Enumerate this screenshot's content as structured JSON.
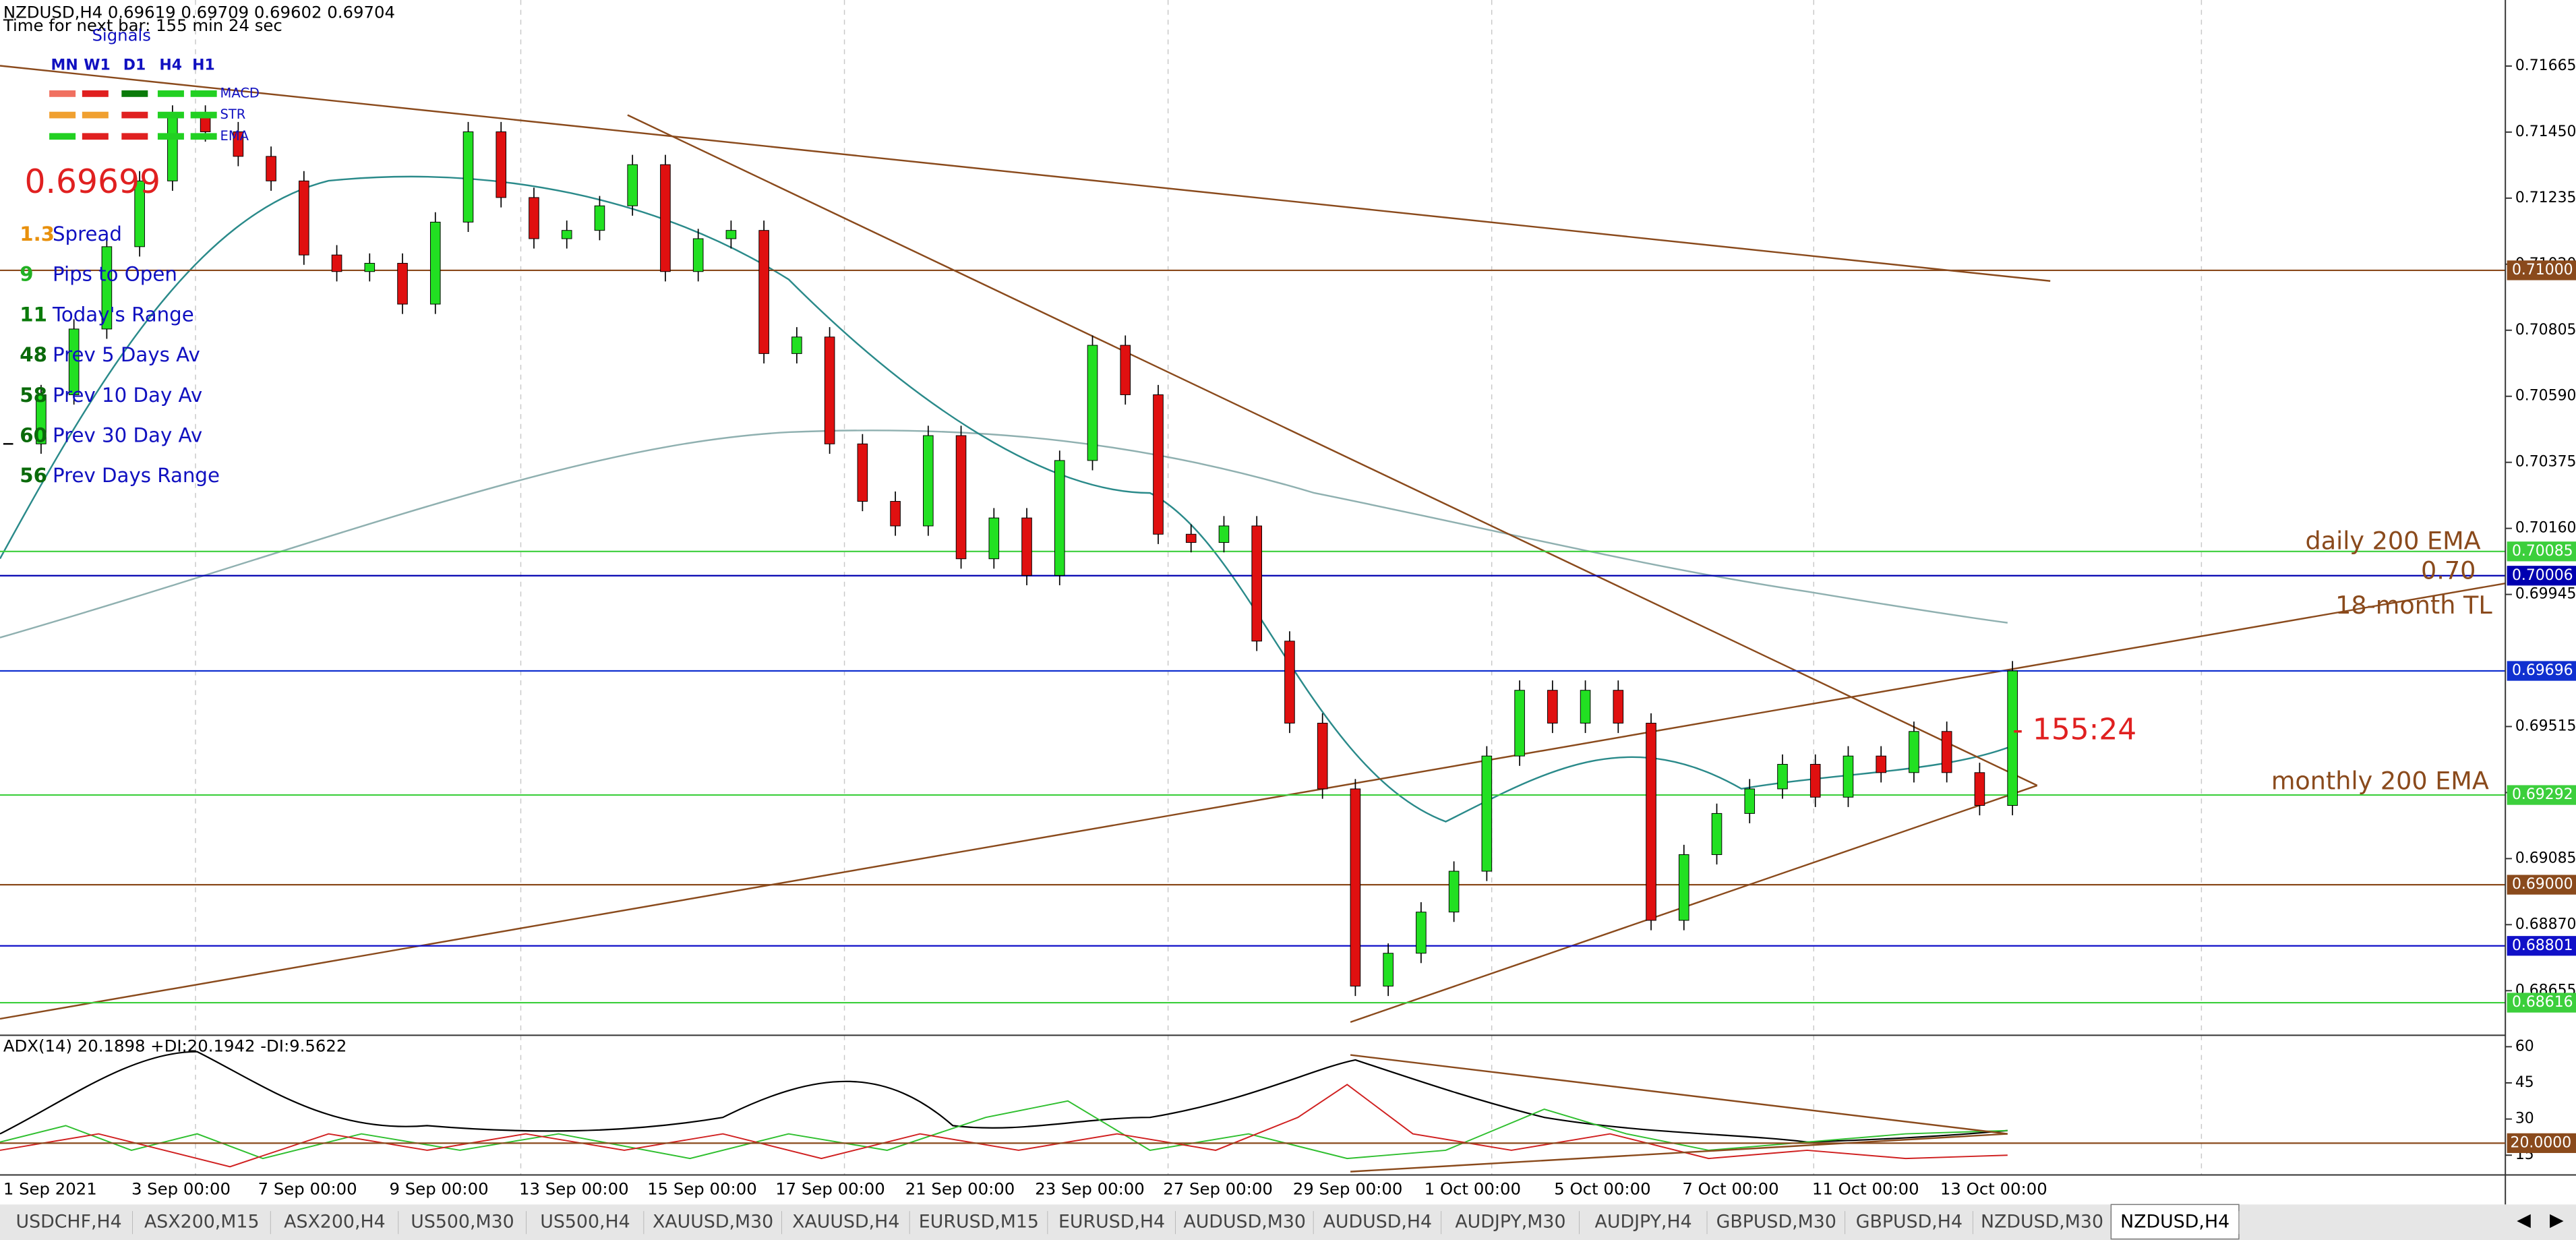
{
  "window": {
    "header": "NZDUSD,H4  0.69619 0.69709 0.69602 0.69704",
    "timer": "Time for next bar: 155 min 24 sec",
    "signals": {
      "title": "Signals",
      "timeframes": [
        "MN",
        "W1",
        "D1",
        "H4",
        "H1"
      ],
      "indicators": [
        "MACD",
        "STR",
        "EMA"
      ]
    },
    "bid": "0.69699",
    "stats": [
      {
        "value": 1.3,
        "label": "Spread",
        "color": "#e8900c"
      },
      {
        "value": 9,
        "label": "Pips to Open",
        "color": "#22b022"
      },
      {
        "value": 11,
        "label": "Today's Range",
        "color": "#0a7a0a"
      },
      {
        "value": 48,
        "label": "Prev 5 Days Av",
        "color": "#0a6a0a"
      },
      {
        "value": 58,
        "label": "Prev 10 Day Av",
        "color": "#0a6a0a"
      },
      {
        "value": 60,
        "label": "Prev 30 Day Av",
        "color": "#0a6a0a"
      },
      {
        "value": 56,
        "label": "Prev Days Range",
        "color": "#0a6a0a"
      }
    ],
    "price_axis": {
      "ylim": [
        0.6851,
        0.7188
      ],
      "ticks": [
        {
          "value": 0.71665,
          "label": "0.71665"
        },
        {
          "value": 0.7145,
          "label": "0.71450"
        },
        {
          "value": 0.71235,
          "label": "0.71235"
        },
        {
          "value": 0.7102,
          "label": "0.71020"
        },
        {
          "value": 0.70805,
          "label": "0.70805"
        },
        {
          "value": 0.7059,
          "label": "0.70590"
        },
        {
          "value": 0.70375,
          "label": "0.70375"
        },
        {
          "value": 0.7016,
          "label": "0.70160"
        },
        {
          "value": 0.69945,
          "label": "0.69945"
        },
        {
          "value": 0.69515,
          "label": "0.69515"
        },
        {
          "value": 0.693,
          "label": "0.69300"
        },
        {
          "value": 0.69085,
          "label": "0.69085"
        },
        {
          "value": 0.6887,
          "label": "0.68870"
        },
        {
          "value": 0.68655,
          "label": "0.68655"
        }
      ]
    },
    "levels": [
      {
        "value": 0.71,
        "label": "0.71000",
        "color": "#8a4a1c"
      },
      {
        "value": 0.70085,
        "label": "0.70085",
        "color": "#3ccf3c"
      },
      {
        "value": 0.70006,
        "label": "0.70006",
        "color": "#0000b0"
      },
      {
        "value": 0.69696,
        "label": "0.69696",
        "color": "#1030d0"
      },
      {
        "value": 0.69292,
        "label": "0.69292",
        "color": "#3ccf3c"
      },
      {
        "value": 0.69,
        "label": "0.69000",
        "color": "#8a4a1c"
      },
      {
        "value": 0.68801,
        "label": "0.68801",
        "color": "#1010c8"
      },
      {
        "value": 0.68616,
        "label": "0.68616",
        "color": "#3ccf3c"
      }
    ],
    "time_labels": [
      "1 Sep 2021",
      "3 Sep 00:00",
      "7 Sep 00:00",
      "9 Sep 00:00",
      "13 Sep 00:00",
      "15 Sep 00:00",
      "17 Sep 00:00",
      "21 Sep 00:00",
      "23 Sep 00:00",
      "27 Sep 00:00",
      "29 Sep 00:00",
      "1 Oct 00:00",
      "5 Oct 00:00",
      "7 Oct 00:00",
      "11 Oct 00:00",
      "13 Oct 00:00"
    ],
    "closes": [
      0.70435,
      0.70595,
      0.70809,
      0.71077,
      0.71291,
      0.71505,
      0.71451,
      0.71371,
      0.71291,
      0.7105,
      0.70996,
      0.71023,
      0.7089,
      0.71157,
      0.71451,
      0.71237,
      0.71103,
      0.7113,
      0.7121,
      0.71344,
      0.70996,
      0.71103,
      0.7113,
      0.70729,
      0.70783,
      0.70435,
      0.70248,
      0.70168,
      0.70462,
      0.70061,
      0.70194,
      0.70007,
      0.70381,
      0.70756,
      0.70595,
      0.70141,
      0.70114,
      0.70168,
      0.69793,
      0.69526,
      0.69312,
      0.6867,
      0.68777,
      0.68911,
      0.69044,
      0.69419,
      0.69633,
      0.69526,
      0.69633,
      0.69526,
      0.68884,
      0.69098,
      0.69232,
      0.69312,
      0.69392,
      0.69285,
      0.69419,
      0.69365,
      0.69499,
      0.69365,
      0.69258,
      0.69696
    ],
    "annotations": {
      "daily": "daily 200 EMA",
      "round": "0.70",
      "trendline": "18-month TL",
      "monthly": "monthly 200 EMA",
      "countdown": "- 155:24"
    },
    "adx": {
      "label": "ADX(14) 20.1898 +DI:20.1942 -DI:9.5622",
      "ylim": [
        3.4,
        63.4
      ],
      "ticks": [
        60,
        45,
        30,
        15
      ],
      "level": {
        "value": 20,
        "label": "20.0000"
      }
    }
  },
  "tabs": [
    "USDCHF,H4",
    "ASX200,M15",
    "ASX200,H4",
    "US500,M30",
    "US500,H4",
    "XAUUSD,M30",
    "XAUUSD,H4",
    "EURUSD,M15",
    "EURUSD,H4",
    "AUDUSD,M30",
    "AUDUSD,H4",
    "AUDJPY,M30",
    "AUDJPY,H4",
    "GBPUSD,M30",
    "GBPUSD,H4",
    "NZDUSD,M30",
    "NZDUSD,H4"
  ],
  "active_tab": 16
}
